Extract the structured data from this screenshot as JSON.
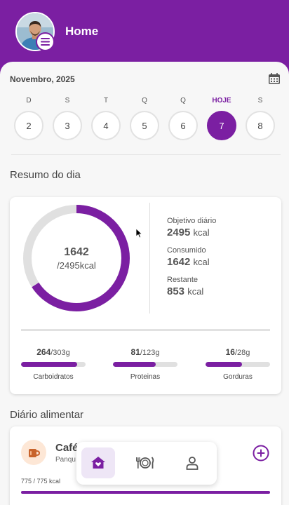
{
  "header": {
    "title": "Home",
    "avatar": "user-avatar",
    "menu_icon": "menu-icon"
  },
  "date": {
    "month_label": "Novembro, 2025",
    "calendar_icon": "calendar-icon"
  },
  "week": [
    {
      "letter": "D",
      "num": "2",
      "today": false
    },
    {
      "letter": "S",
      "num": "3",
      "today": false
    },
    {
      "letter": "T",
      "num": "4",
      "today": false
    },
    {
      "letter": "Q",
      "num": "5",
      "today": false
    },
    {
      "letter": "Q",
      "num": "6",
      "today": false
    },
    {
      "letter": "HOJE",
      "num": "7",
      "today": true
    },
    {
      "letter": "S",
      "num": "8",
      "today": false
    }
  ],
  "summary": {
    "title": "Resumo do dia",
    "consumed_value": "1642",
    "goal_text": "/2495kcal",
    "progress": 0.658,
    "stats": [
      {
        "label": "Objetivo diário",
        "value": "2495",
        "unit": "kcal"
      },
      {
        "label": "Consumido",
        "value": "1642",
        "unit": "kcal"
      },
      {
        "label": "Restante",
        "value": "853",
        "unit": "kcal"
      }
    ],
    "macros": [
      {
        "current": "264",
        "target": "/303g",
        "label": "Carboidratos",
        "progress": 0.87
      },
      {
        "current": "81",
        "target": "/123g",
        "label": "Proteinas",
        "progress": 0.66
      },
      {
        "current": "16",
        "target": "/28g",
        "label": "Gorduras",
        "progress": 0.57
      }
    ]
  },
  "diary": {
    "title": "Diário alimentar",
    "meal": {
      "name": "Café",
      "sub": "Panqu",
      "kcal": "775 / 775 kcal",
      "icon": "coffee-cup-icon",
      "progress": 1.0
    }
  },
  "nav": {
    "home_icon": "home-heart-icon",
    "food_icon": "plate-cutlery-icon",
    "profile_icon": "person-icon"
  },
  "colors": {
    "primary": "#7b1fa2",
    "track": "#e0e0e0",
    "background": "#f7f7f7"
  }
}
